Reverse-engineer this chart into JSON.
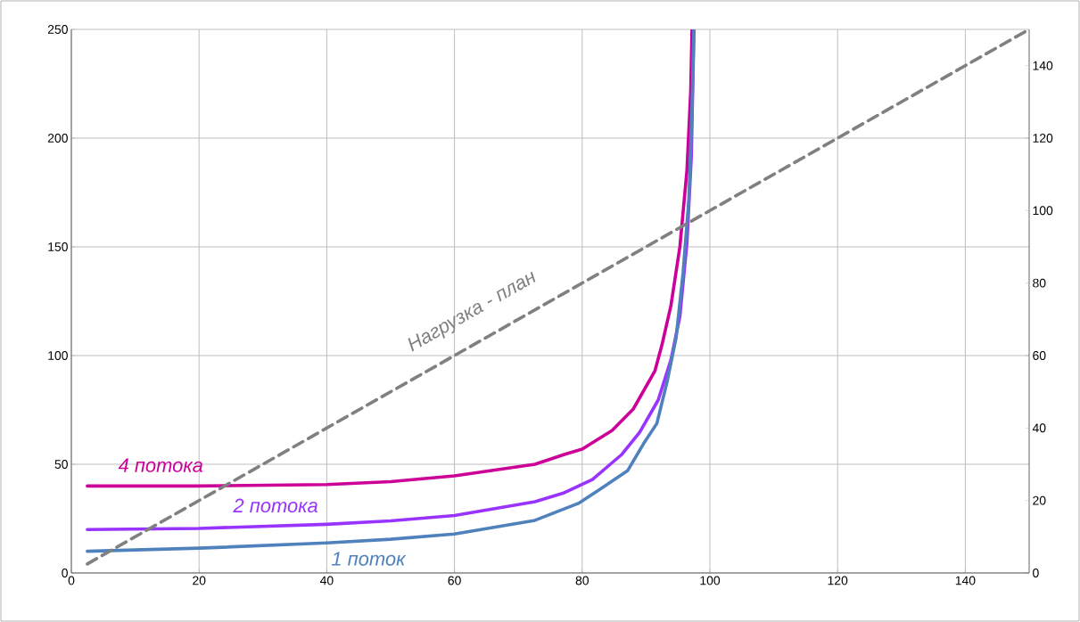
{
  "chart_data": {
    "type": "line",
    "xlim": [
      0,
      150
    ],
    "xticks": [
      0,
      20,
      40,
      60,
      80,
      100,
      120,
      140
    ],
    "ylim": [
      0,
      250
    ],
    "yticks": [
      0,
      50,
      100,
      150,
      200,
      250
    ],
    "y2lim": [
      0,
      150
    ],
    "y2ticks": [
      0,
      20,
      40,
      60,
      80,
      100,
      120,
      140
    ],
    "grid": true,
    "marker": "none",
    "series": [
      {
        "name": "4 потока",
        "color": "#cc0099",
        "line_style": "solid",
        "x": [
          2.5,
          20,
          40,
          50,
          60,
          72.6,
          77.2,
          80,
          84.7,
          88,
          91.4,
          92.5,
          93.9,
          95.3,
          96.4,
          97,
          97.2
        ],
        "values": [
          40,
          40,
          40.7,
          42,
          44.7,
          50,
          54.5,
          57,
          65.6,
          75.4,
          93,
          105,
          123,
          150,
          185,
          222,
          250
        ]
      },
      {
        "name": "2 потока",
        "color": "#9933ff",
        "line_style": "solid",
        "x": [
          2.5,
          20,
          40,
          50,
          60,
          72.6,
          77.2,
          81.6,
          86.2,
          89,
          91.9,
          93.9,
          95.3,
          96.4,
          97.1,
          97.5
        ],
        "values": [
          20,
          20.5,
          22.4,
          24,
          26.4,
          32.8,
          36.9,
          43,
          54.5,
          64.7,
          79.5,
          98,
          118,
          151.6,
          191.8,
          250
        ]
      },
      {
        "name": "1 поток",
        "color": "#4f81bd",
        "line_style": "solid",
        "x": [
          2.5,
          20,
          40,
          50,
          60,
          72.6,
          79.4,
          82.8,
          87.1,
          89.6,
          91.7,
          93.3,
          94.7,
          95.8,
          96.7,
          97.2,
          97.5
        ],
        "values": [
          10,
          11.4,
          13.8,
          15.5,
          17.9,
          24.2,
          32,
          38.5,
          47,
          59.4,
          68.8,
          88,
          108,
          138,
          171.7,
          213.5,
          250
        ]
      },
      {
        "name": "Нагрузка - план",
        "color": "#808080",
        "line_style": "dashed",
        "axis": "y2",
        "x": [
          2.5,
          150
        ],
        "values": [
          2.5,
          150
        ]
      }
    ]
  }
}
